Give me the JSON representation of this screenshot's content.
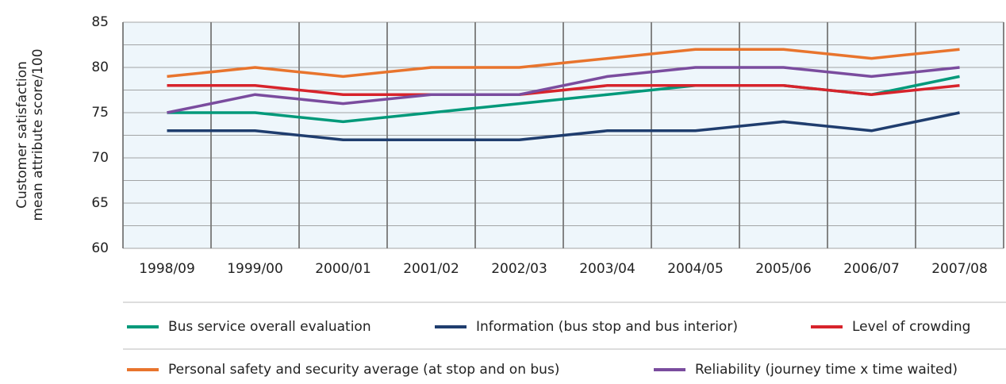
{
  "chart_data": {
    "type": "line",
    "y_label": [
      "Customer satisfaction",
      "mean attribute score/100"
    ],
    "categories": [
      "1998/09",
      "1999/00",
      "2000/01",
      "2001/02",
      "2002/03",
      "2003/04",
      "2004/05",
      "2005/06",
      "2006/07",
      "2007/08"
    ],
    "series": [
      {
        "name": "Bus service overall evaluation",
        "color": "#00997a",
        "values": [
          75,
          75,
          74,
          75,
          76,
          77,
          78,
          78,
          77,
          79
        ]
      },
      {
        "name": "Information (bus stop and bus interior)",
        "color": "#1f3d6e",
        "values": [
          73,
          73,
          72,
          72,
          72,
          73,
          73,
          74,
          73,
          75
        ]
      },
      {
        "name": "Level of crowding",
        "color": "#d7232b",
        "values": [
          78,
          78,
          77,
          77,
          77,
          78,
          78,
          78,
          77,
          78
        ]
      },
      {
        "name": "Personal safety and security average (at stop and on bus)",
        "color": "#e8742d",
        "values": [
          79,
          80,
          79,
          80,
          80,
          81,
          82,
          82,
          81,
          82
        ]
      },
      {
        "name": "Reliability (journey time x time waited)",
        "color": "#7a4c9e",
        "values": [
          75,
          77,
          76,
          77,
          77,
          79,
          80,
          80,
          79,
          80
        ]
      }
    ],
    "ylim": [
      60,
      85
    ],
    "yticks": [
      60,
      65,
      70,
      75,
      80,
      85
    ],
    "y_minor_ticks": [
      62.5,
      67.5,
      72.5,
      77.5,
      82.5
    ],
    "grid": true,
    "legend": "bottom"
  }
}
